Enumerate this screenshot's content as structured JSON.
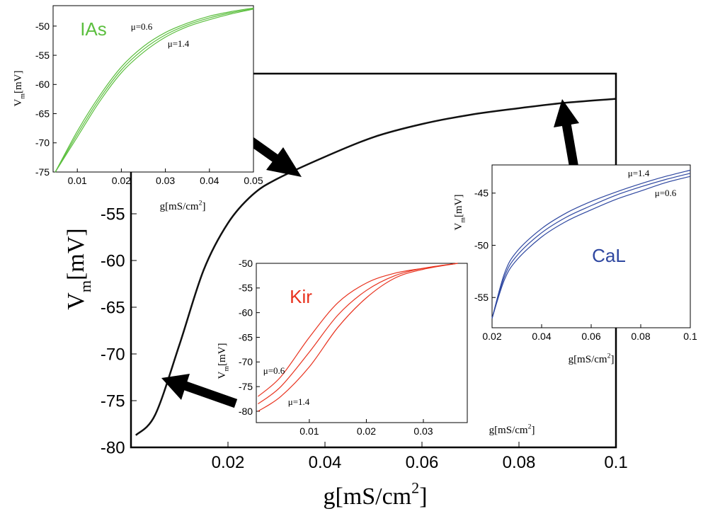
{
  "chart_data": [
    {
      "type": "line",
      "xlabel": [
        "g[mS/cm",
        "2",
        "]"
      ],
      "ylabel": [
        "V",
        "m",
        "[mV]"
      ],
      "x": [
        0.001,
        0.005,
        0.01,
        0.015,
        0.02,
        0.025,
        0.03,
        0.04,
        0.05,
        0.06,
        0.07,
        0.08,
        0.09,
        0.1
      ],
      "series": [
        {
          "color": "#111111",
          "values": [
            -78.7,
            -76.5,
            -69,
            -61,
            -56,
            -53,
            -51.3,
            -48.9,
            -46.8,
            -45.4,
            -44.4,
            -43.7,
            -43.1,
            -42.7
          ]
        }
      ],
      "xlim": [
        0,
        0.1
      ],
      "ylim": [
        -80,
        -40
      ],
      "xticks": [
        0.02,
        0.04,
        0.06,
        0.08,
        0.1
      ],
      "yticks": [
        -80,
        -75,
        -70,
        -65,
        -60,
        -55
      ]
    },
    {
      "type": "line",
      "title": "IAs",
      "title_color": "#5cbf3f",
      "xlabel": [
        "g[mS/cm",
        "2",
        "]"
      ],
      "ylabel": [
        "V",
        "m",
        "[mV]"
      ],
      "annotations": [
        "μ=0.6",
        "μ=1.4"
      ],
      "x": [
        0.005,
        0.01,
        0.015,
        0.02,
        0.025,
        0.03,
        0.035,
        0.04,
        0.045,
        0.05
      ],
      "series": [
        {
          "color": "#5cbf3f",
          "values": [
            -75,
            -68.0,
            -62.0,
            -57.0,
            -53.5,
            -51.1,
            -49.5,
            -48.3,
            -47.5,
            -46.9
          ]
        },
        {
          "color": "#5cbf3f",
          "values": [
            -75,
            -68.5,
            -62.5,
            -57.5,
            -54.0,
            -51.5,
            -49.8,
            -48.6,
            -47.7,
            -47.0
          ]
        },
        {
          "color": "#5cbf3f",
          "values": [
            -75,
            -69.0,
            -63.0,
            -58.0,
            -54.5,
            -51.9,
            -50.1,
            -48.9,
            -47.9,
            -47.1
          ]
        }
      ],
      "xlim": [
        0.0045,
        0.05
      ],
      "ylim": [
        -75,
        -46.5
      ],
      "xticks": [
        0.01,
        0.02,
        0.03,
        0.04,
        0.05
      ],
      "yticks": [
        -75,
        -70,
        -65,
        -60,
        -55,
        -50
      ]
    },
    {
      "type": "line",
      "title": "Kir",
      "title_color": "#e8321e",
      "xlabel": [
        "g[mS/cm",
        "2",
        "]"
      ],
      "ylabel": [
        "V",
        "m",
        "[mV]"
      ],
      "annotations": [
        "μ=0.6",
        "μ=1.4"
      ],
      "x": [
        0.001,
        0.005,
        0.01,
        0.015,
        0.02,
        0.025,
        0.03,
        0.036
      ],
      "series": [
        {
          "color": "#e8321e",
          "values": [
            -77,
            -73,
            -65,
            -58,
            -54,
            -52,
            -51,
            -50
          ]
        },
        {
          "color": "#e8321e",
          "values": [
            -78.5,
            -75,
            -68,
            -60.5,
            -55.5,
            -52.5,
            -51,
            -50
          ]
        },
        {
          "color": "#e8321e",
          "values": [
            -80,
            -77,
            -71,
            -63,
            -57,
            -53,
            -51.2,
            -50
          ]
        }
      ],
      "xlim": [
        0.0007,
        0.0377
      ],
      "ylim": [
        -82.3,
        -50
      ],
      "xticks": [
        0.01,
        0.02,
        0.03
      ],
      "yticks": [
        -80,
        -75,
        -70,
        -65,
        -60,
        -55,
        -50
      ]
    },
    {
      "type": "line",
      "title": "CaL",
      "title_color": "#2e47a0",
      "xlabel": [
        "g[mS/cm",
        "2",
        "]"
      ],
      "ylabel": [
        "V",
        "m",
        "[mV]"
      ],
      "annotations": [
        "μ=1.4",
        "μ=0.6"
      ],
      "x": [
        0.02,
        0.025,
        0.03,
        0.04,
        0.05,
        0.06,
        0.07,
        0.08,
        0.09,
        0.1
      ],
      "series": [
        {
          "color": "#2e47a0",
          "values": [
            -57,
            -52.7,
            -50.6,
            -48.4,
            -46.9,
            -45.8,
            -44.9,
            -44.1,
            -43.4,
            -42.8
          ]
        },
        {
          "color": "#2e47a0",
          "values": [
            -57,
            -53.0,
            -51.0,
            -48.8,
            -47.3,
            -46.2,
            -45.2,
            -44.4,
            -43.7,
            -43.1
          ]
        },
        {
          "color": "#2e47a0",
          "values": [
            -57,
            -53.3,
            -51.4,
            -49.2,
            -47.7,
            -46.6,
            -45.6,
            -44.8,
            -44.0,
            -43.4
          ]
        }
      ],
      "xlim": [
        0.02,
        0.1
      ],
      "ylim": [
        -57.9,
        -42.3
      ],
      "xticks": [
        0.02,
        0.04,
        0.06,
        0.08,
        0.1
      ],
      "yticks": [
        -55,
        -50,
        -45
      ]
    }
  ]
}
